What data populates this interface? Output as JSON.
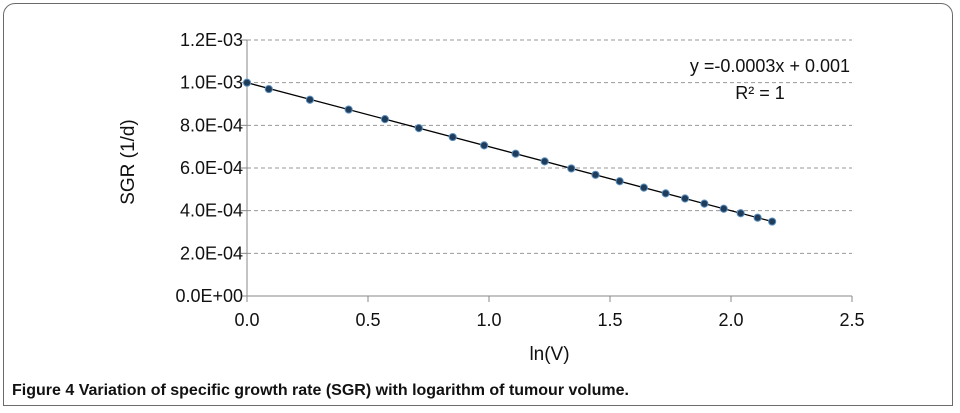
{
  "caption": {
    "figure_number": "Figure 4",
    "text": "Variation of specific growth rate (SGR) with logarithm of tumour volume."
  },
  "chart_data": {
    "type": "scatter",
    "title": "",
    "xlabel": "ln(V)",
    "ylabel": "SGR (1/d)",
    "xlim": [
      0,
      2.5
    ],
    "ylim": [
      0,
      0.0012
    ],
    "x_ticks": [
      0,
      0.5,
      1,
      1.5,
      2,
      2.5
    ],
    "x_tick_labels": [
      "0.0",
      "0.5",
      "1.0",
      "1.5",
      "2.0",
      "2.5"
    ],
    "y_ticks": [
      0,
      0.0002,
      0.0004,
      0.0006,
      0.0008,
      0.001,
      0.0012
    ],
    "y_tick_labels": [
      "0.0E+00",
      "2.0E-04",
      "4.0E-04",
      "6.0E-04",
      "8.0E-04",
      "1.0E-03",
      "1.2E-03"
    ],
    "grid": "horizontal-dashed",
    "legend": "none",
    "series": [
      {
        "x": [
          0.0,
          0.09,
          0.26,
          0.42,
          0.57,
          0.71,
          0.85,
          0.98,
          1.11,
          1.23,
          1.34,
          1.44,
          1.54,
          1.64,
          1.73,
          1.81,
          1.89,
          1.97,
          2.04,
          2.11,
          2.17
        ],
        "y": [
          0.001,
          0.00097,
          0.00092,
          0.000874,
          0.000829,
          0.000787,
          0.000745,
          0.000706,
          0.000667,
          0.000631,
          0.000598,
          0.000568,
          0.000538,
          0.000508,
          0.000481,
          0.000457,
          0.000433,
          0.000409,
          0.000388,
          0.000367,
          0.000349
        ]
      }
    ],
    "trendline": {
      "slope": -0.0003,
      "intercept": 0.001
    },
    "annotations": {
      "equation": "y =-0.0003x + 0.001",
      "r_squared": "R² = 1"
    },
    "colors": {
      "marker_fill": "#1f3d5a",
      "marker_stroke": "#5b8fc0",
      "trendline": "#000000",
      "grid": "#9a9a9a",
      "axis": "#888888"
    }
  }
}
